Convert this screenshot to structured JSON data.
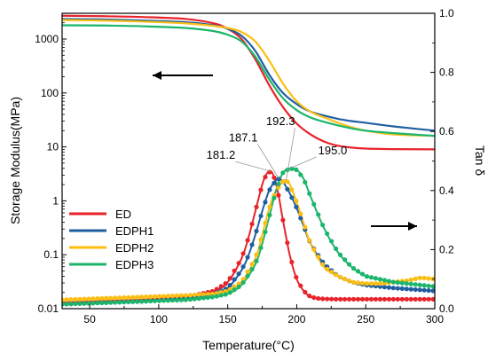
{
  "chart_data": {
    "type": "line",
    "xlabel": "Temperature(°C)",
    "ylabel_left": "Storage Modulus(MPa)",
    "ylabel_right": "Tan δ",
    "xlim": [
      30,
      300
    ],
    "ylim_left": [
      0.01,
      3000
    ],
    "ylim_left_scale": "log",
    "ylim_right": [
      0,
      1.0
    ],
    "x_ticks": [
      50,
      100,
      150,
      200,
      250,
      300
    ],
    "y_left_ticks": [
      0.01,
      0.1,
      1,
      10,
      100,
      1000
    ],
    "y_left_tick_labels": [
      "0.01",
      "0.1",
      "1",
      "10",
      "100",
      "1000"
    ],
    "y_right_ticks": [
      0.0,
      0.2,
      0.4,
      0.6,
      0.8,
      1.0
    ],
    "y_right_tick_labels": [
      "0.0",
      "0.2",
      "0.4",
      "0.6",
      "0.8",
      "1.0"
    ],
    "grid": false,
    "legend_position": "lower-left",
    "series": [
      {
        "name": "ED",
        "color": "#e8232a",
        "storage_modulus": {
          "x": [
            30,
            60,
            90,
            120,
            140,
            150,
            160,
            170,
            180,
            190,
            200,
            210,
            220,
            230,
            240,
            250,
            270,
            300
          ],
          "y": [
            2700,
            2650,
            2550,
            2350,
            1950,
            1550,
            1000,
            420,
            140,
            55,
            27,
            17,
            12.5,
            10.5,
            9.7,
            9.3,
            9.1,
            9.0
          ]
        },
        "tan_delta": {
          "x": [
            30,
            60,
            90,
            120,
            140,
            150,
            160,
            165,
            170,
            175,
            178,
            181.2,
            184,
            187,
            190,
            195,
            200,
            205,
            210,
            215,
            220,
            230,
            240,
            250,
            270,
            300
          ],
          "y": [
            0.02,
            0.025,
            0.03,
            0.04,
            0.06,
            0.09,
            0.17,
            0.24,
            0.33,
            0.42,
            0.455,
            0.465,
            0.44,
            0.38,
            0.3,
            0.18,
            0.1,
            0.06,
            0.04,
            0.035,
            0.033,
            0.032,
            0.032,
            0.032,
            0.032,
            0.032
          ]
        },
        "annotation": {
          "label": "181.2",
          "x": 181.2
        }
      },
      {
        "name": "EDPH1",
        "color": "#1f5fa0",
        "storage_modulus": {
          "x": [
            30,
            60,
            90,
            120,
            140,
            150,
            160,
            170,
            180,
            190,
            200,
            210,
            220,
            230,
            240,
            250,
            270,
            300
          ],
          "y": [
            2350,
            2300,
            2200,
            2050,
            1800,
            1550,
            1150,
            600,
            220,
            100,
            62,
            45,
            38,
            33,
            30,
            28,
            24,
            20
          ]
        },
        "tan_delta": {
          "x": [
            30,
            60,
            90,
            120,
            140,
            150,
            160,
            165,
            170,
            175,
            180,
            185,
            187.1,
            190,
            195,
            200,
            205,
            210,
            220,
            230,
            240,
            250,
            270,
            300
          ],
          "y": [
            0.015,
            0.02,
            0.025,
            0.035,
            0.05,
            0.07,
            0.13,
            0.18,
            0.25,
            0.33,
            0.4,
            0.435,
            0.44,
            0.43,
            0.39,
            0.34,
            0.28,
            0.22,
            0.15,
            0.11,
            0.09,
            0.08,
            0.07,
            0.06
          ]
        },
        "annotation": {
          "label": "187.1",
          "x": 187.1
        }
      },
      {
        "name": "EDPH2",
        "color": "#fbbe13",
        "storage_modulus": {
          "x": [
            30,
            60,
            90,
            120,
            140,
            150,
            160,
            170,
            180,
            190,
            200,
            210,
            220,
            230,
            240,
            250,
            270,
            300
          ],
          "y": [
            2250,
            2200,
            2100,
            1950,
            1750,
            1600,
            1350,
            900,
            400,
            150,
            70,
            45,
            35,
            28,
            23,
            20,
            17,
            16
          ]
        },
        "tan_delta": {
          "x": [
            30,
            60,
            90,
            120,
            140,
            150,
            160,
            170,
            175,
            180,
            185,
            190,
            192.3,
            195,
            200,
            205,
            210,
            220,
            230,
            240,
            250,
            260,
            270,
            280,
            290,
            300
          ],
          "y": [
            0.03,
            0.035,
            0.04,
            0.045,
            0.05,
            0.06,
            0.09,
            0.17,
            0.25,
            0.34,
            0.4,
            0.43,
            0.435,
            0.42,
            0.36,
            0.29,
            0.22,
            0.14,
            0.11,
            0.09,
            0.085,
            0.085,
            0.09,
            0.095,
            0.105,
            0.1
          ]
        },
        "annotation": {
          "label": "192.3",
          "x": 192.3
        }
      },
      {
        "name": "EDPH3",
        "color": "#1bb56b",
        "storage_modulus": {
          "x": [
            30,
            60,
            90,
            120,
            140,
            150,
            160,
            170,
            180,
            190,
            200,
            210,
            220,
            230,
            240,
            250,
            270,
            300
          ],
          "y": [
            1800,
            1780,
            1720,
            1600,
            1400,
            1200,
            900,
            470,
            180,
            80,
            48,
            35,
            29,
            25,
            22,
            20,
            18,
            16
          ]
        },
        "tan_delta": {
          "x": [
            30,
            60,
            90,
            120,
            140,
            150,
            160,
            170,
            175,
            180,
            185,
            190,
            195,
            200,
            205,
            210,
            220,
            230,
            240,
            250,
            260,
            270,
            280,
            290,
            300
          ],
          "y": [
            0.015,
            0.02,
            0.025,
            0.03,
            0.04,
            0.05,
            0.08,
            0.15,
            0.22,
            0.31,
            0.4,
            0.46,
            0.475,
            0.47,
            0.44,
            0.38,
            0.27,
            0.19,
            0.14,
            0.11,
            0.1,
            0.09,
            0.085,
            0.08,
            0.075
          ]
        },
        "annotation": {
          "label": "195.0",
          "x": 195.0
        }
      }
    ]
  }
}
